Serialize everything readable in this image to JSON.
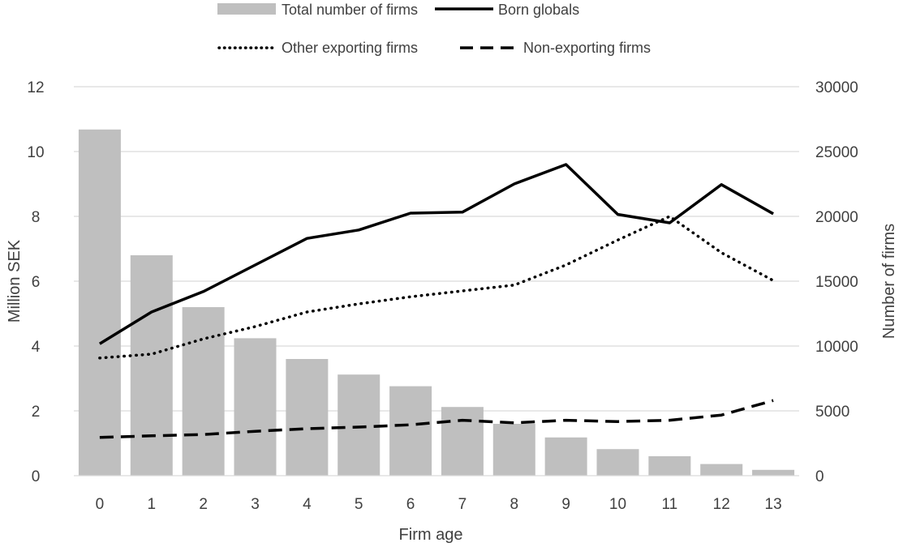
{
  "colors": {
    "bars": "#bfbfbf",
    "lines": "#000000",
    "grid": "#d9d9d9",
    "text": "#404040"
  },
  "chart_data": {
    "type": "bar",
    "title": "",
    "xlabel": "Firm age",
    "ylabel_left": "Million SEK",
    "ylabel_right": "Number of firms",
    "ylim_left": [
      0,
      12
    ],
    "ylim_right": [
      0,
      30000
    ],
    "yticks_left": [
      "0",
      "2",
      "4",
      "6",
      "8",
      "10",
      "12"
    ],
    "yticks_right": [
      "0",
      "5000",
      "10000",
      "15000",
      "20000",
      "25000",
      "30000"
    ],
    "categories": [
      "0",
      "1",
      "2",
      "3",
      "4",
      "5",
      "6",
      "7",
      "8",
      "9",
      "10",
      "11",
      "12",
      "13"
    ],
    "grid": "horizontal",
    "legend_position": "top",
    "bar_series": {
      "name": "Total number of firms",
      "axis": "right",
      "values": [
        26700,
        17000,
        13000,
        10600,
        9000,
        7800,
        6900,
        5300,
        4000,
        2950,
        2050,
        1500,
        900,
        450
      ]
    },
    "line_series": [
      {
        "name": "Born globals",
        "axis": "left",
        "style": "solid",
        "values": [
          4.07,
          5.05,
          5.68,
          6.5,
          7.32,
          7.58,
          8.1,
          8.13,
          9.0,
          9.6,
          8.06,
          7.8,
          8.98,
          8.08
        ]
      },
      {
        "name": "Other exporting firms",
        "axis": "left",
        "style": "dotted",
        "values": [
          3.63,
          3.75,
          4.22,
          4.6,
          5.05,
          5.3,
          5.52,
          5.7,
          5.88,
          6.5,
          7.27,
          8.0,
          6.88,
          6.02
        ]
      },
      {
        "name": "Non-exporting firms",
        "axis": "left",
        "style": "dashed",
        "values": [
          1.18,
          1.23,
          1.27,
          1.37,
          1.45,
          1.5,
          1.57,
          1.71,
          1.63,
          1.71,
          1.67,
          1.71,
          1.87,
          2.32
        ]
      }
    ]
  }
}
